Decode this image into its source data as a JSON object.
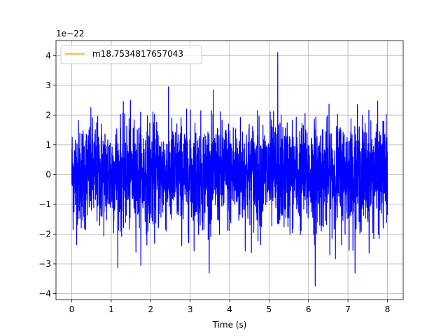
{
  "chart_data": {
    "type": "line",
    "title": "",
    "xlabel": "Time (s)",
    "ylabel": "",
    "offset_text": "1e−22",
    "scale_factor": 1e-22,
    "xlim": [
      -0.4,
      8.4
    ],
    "ylim": [
      -4.2,
      4.5
    ],
    "x_ticks": [
      0,
      1,
      2,
      3,
      4,
      5,
      6,
      7,
      8
    ],
    "x_tick_labels": [
      "0",
      "1",
      "2",
      "3",
      "4",
      "5",
      "6",
      "7",
      "8"
    ],
    "y_ticks": [
      -4,
      -3,
      -2,
      -1,
      0,
      1,
      2,
      3,
      4
    ],
    "y_tick_labels": [
      "−4",
      "−3",
      "−2",
      "−1",
      "0",
      "1",
      "2",
      "3",
      "4"
    ],
    "grid": true,
    "legend": {
      "placement": "upper-left",
      "entries": [
        {
          "label": "m18.7534817657043",
          "color": "#ffa500"
        }
      ]
    },
    "series": [
      {
        "name": "m18.7534817657043",
        "legend_color": "#ffa500",
        "line_color": "#0000ff",
        "x_range": [
          0,
          8
        ],
        "approx_std": 0.9,
        "approx_max": 4.1,
        "approx_max_at": 5.22,
        "approx_min": -3.75,
        "approx_min_at": 6.17
      }
    ]
  }
}
